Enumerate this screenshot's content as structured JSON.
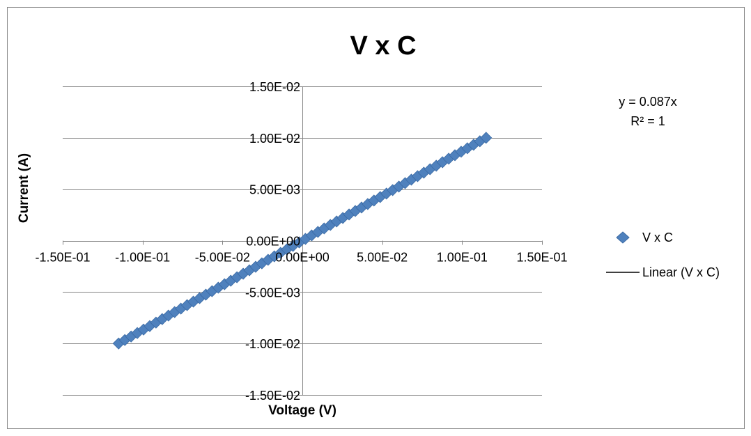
{
  "chart_data": {
    "type": "scatter",
    "title": "V x C",
    "xlabel": "Voltage (V)",
    "ylabel": "Current (A)",
    "xlim": [
      -0.15,
      0.15
    ],
    "ylim": [
      -0.015,
      0.015
    ],
    "x_ticks": [
      -0.15,
      -0.1,
      -0.05,
      0,
      0.05,
      0.1,
      0.15
    ],
    "x_tick_labels": [
      "-1.50E-01",
      "-1.00E-01",
      "-5.00E-02",
      "0.00E+00",
      "5.00E-02",
      "1.00E-01",
      "1.50E-01"
    ],
    "y_ticks": [
      0.015,
      0.01,
      0.005,
      0,
      -0.005,
      -0.01,
      -0.015
    ],
    "y_tick_labels": [
      "1.50E-02",
      "1.00E-02",
      "5.00E-03",
      "0.00E+00",
      "-5.00E-03",
      "-1.00E-02",
      "-1.50E-02"
    ],
    "grid": "horizontal",
    "legend_position": "right",
    "series": [
      {
        "name": "V x C",
        "marker": "diamond",
        "color": "#4F81BD",
        "x_start": -0.115,
        "x_end": 0.115,
        "y_start": -0.01,
        "y_end": 0.01,
        "point_count": 60
      }
    ],
    "trendline": {
      "name": "Linear (V x C)",
      "color": "#000000",
      "equation": "y = 0.087x",
      "r_squared": "R² = 1",
      "x_range": [
        -0.115,
        0.115
      ],
      "slope": 0.087
    }
  }
}
